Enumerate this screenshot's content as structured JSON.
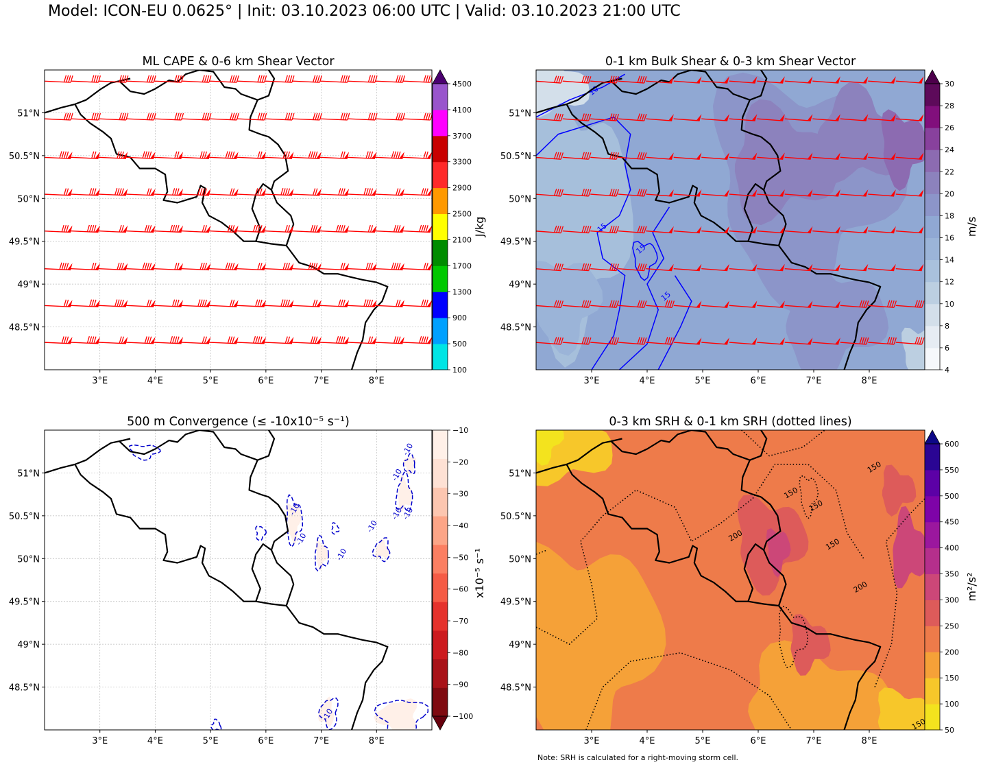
{
  "figure": {
    "title": "Model: ICON-EU 0.0625° | Init: 03.10.2023 06:00 UTC | Valid: 03.10.2023 21:00 UTC",
    "footnote": "Note: SRH is calculated for a right-moving storm cell."
  },
  "chart_data": [
    {
      "type": "heatmap",
      "title": "ML CAPE & 0-6 km Shear Vector",
      "xlabel": "",
      "ylabel": "",
      "xlim": [
        2.0,
        9.0
      ],
      "ylim": [
        48.0,
        51.5
      ],
      "xticks": [
        "3°E",
        "4°E",
        "5°E",
        "6°E",
        "7°E",
        "8°E"
      ],
      "yticks": [
        "48.5°N",
        "49°N",
        "49.5°N",
        "50°N",
        "50.5°N",
        "51°N"
      ],
      "grid": true,
      "colorbar": {
        "label": "J/kg",
        "levels": [
          100,
          500,
          900,
          1300,
          1700,
          2100,
          2500,
          2900,
          3300,
          3700,
          4100,
          4500
        ],
        "tick_labels": [
          "100",
          "500",
          "900",
          "1300",
          "1700",
          "2100",
          "2500",
          "2900",
          "3300",
          "3700",
          "4100",
          "4500"
        ],
        "colors": [
          "#00e5e5",
          "#00a0ff",
          "#0000ff",
          "#00c800",
          "#008c00",
          "#ffff00",
          "#ff9900",
          "#ff2a2a",
          "#c80000",
          "#ff00ff",
          "#9955cc"
        ],
        "extend_color": "#4b0070",
        "extend": "max"
      },
      "field": "none (no CAPE ≥ 100 J/kg in domain)",
      "barbs": {
        "color": "#ff0000",
        "lats": [
          51.37,
          50.93,
          50.48,
          50.05,
          49.62,
          49.18,
          48.75,
          48.32
        ],
        "lons": [
          2.25,
          2.75,
          3.25,
          3.75,
          4.25,
          4.75,
          5.25,
          5.75,
          6.25,
          6.75,
          7.25,
          7.75,
          8.25,
          8.75
        ],
        "description": "0-6 km shear ~40-55 kt from WNW"
      }
    },
    {
      "type": "heatmap",
      "title": "0-1 km Bulk Shear & 0-3 km Shear Vector",
      "xlabel": "",
      "ylabel": "",
      "xlim": [
        2.0,
        9.0
      ],
      "ylim": [
        48.0,
        51.5
      ],
      "xticks": [
        "3°E",
        "4°E",
        "5°E",
        "6°E",
        "7°E",
        "8°E"
      ],
      "yticks": [
        "48.5°N",
        "49°N",
        "49.5°N",
        "50°N",
        "50.5°N",
        "51°N"
      ],
      "grid": false,
      "colorbar": {
        "label": "m/s",
        "levels": [
          4,
          6,
          8,
          10,
          12,
          14,
          16,
          18,
          20,
          22,
          24,
          26,
          28,
          30
        ],
        "tick_labels": [
          "4",
          "6",
          "8",
          "10",
          "12",
          "14",
          "16",
          "18",
          "20",
          "22",
          "24",
          "26",
          "28",
          "30"
        ],
        "colors": [
          "#f6f8fb",
          "#e6ecf3",
          "#d3dfea",
          "#bccfe1",
          "#a9c1dc",
          "#9bb4d8",
          "#90a8d3",
          "#8c95c9",
          "#8c82bd",
          "#8c6bb1",
          "#88419d",
          "#810f7c",
          "#5d0a5a"
        ],
        "extend_color": "#4d004b",
        "extend": "max"
      },
      "contours": {
        "color": "#0000ff",
        "levels": [
          10,
          15
        ],
        "labels": [
          "10",
          "15",
          "15",
          "15"
        ]
      },
      "field_summary": "mostly 14-20 m/s, locally 20-24 m/s east of 5°E, 10-14 m/s in far west",
      "barbs": {
        "color": "#ff0000",
        "description": "0-3 km shear ~30-50 kt from WNW"
      }
    },
    {
      "type": "heatmap",
      "title": "500 m Convergence (≤ -10x10⁻⁵ s⁻¹)",
      "xlabel": "",
      "ylabel": "",
      "xlim": [
        2.0,
        9.0
      ],
      "ylim": [
        48.0,
        51.5
      ],
      "xticks": [
        "3°E",
        "4°E",
        "5°E",
        "6°E",
        "7°E",
        "8°E"
      ],
      "yticks": [
        "48.5°N",
        "49°N",
        "49.5°N",
        "50°N",
        "50.5°N",
        "51°N"
      ],
      "grid": true,
      "colorbar": {
        "label": "x10⁻⁵ s⁻¹",
        "levels": [
          -100,
          -90,
          -80,
          -70,
          -60,
          -50,
          -40,
          -30,
          -20,
          -10
        ],
        "tick_labels": [
          "−100",
          "−90",
          "−80",
          "−70",
          "−60",
          "−50",
          "−40",
          "−30",
          "−20",
          "−10"
        ],
        "colors": [
          "#7f0a10",
          "#a81218",
          "#cc1a1e",
          "#e5322c",
          "#f55b45",
          "#fb7f62",
          "#fca587",
          "#fcc6b0",
          "#fee1d4"
        ],
        "top_color": "#fff0e8",
        "extend_color": "#67000d",
        "extend": "min"
      },
      "contours": {
        "color": "#0000cc",
        "style": "dashed",
        "levels": [
          -10
        ],
        "labels": [
          "-10",
          "-10",
          "-10",
          "-10",
          "-10",
          "-10",
          "-10",
          "-10",
          "-10"
        ]
      },
      "field_summary": "isolated weak convergence cells ≈ -10 to -20 x10⁻⁵ s⁻¹ over eastern domain"
    },
    {
      "type": "heatmap",
      "title": "0-3 km SRH & 0-1 km SRH (dotted lines)",
      "xlabel": "",
      "ylabel": "",
      "xlim": [
        2.0,
        9.0
      ],
      "ylim": [
        48.0,
        51.5
      ],
      "xticks": [
        "3°E",
        "4°E",
        "5°E",
        "6°E",
        "7°E",
        "8°E"
      ],
      "yticks": [
        "48.5°N",
        "49°N",
        "49.5°N",
        "50°N",
        "50.5°N",
        "51°N"
      ],
      "grid": false,
      "colorbar": {
        "label": "m²/s²",
        "levels": [
          50,
          100,
          150,
          200,
          250,
          300,
          350,
          400,
          450,
          500,
          550,
          600
        ],
        "tick_labels": [
          "50",
          "100",
          "150",
          "200",
          "250",
          "300",
          "350",
          "400",
          "450",
          "500",
          "550",
          "600"
        ],
        "colors": [
          "#f3e31e",
          "#f7c72a",
          "#f5a138",
          "#ee7b4a",
          "#dd5b5a",
          "#cc4778",
          "#b52f8c",
          "#9b179e",
          "#7e03a8",
          "#5c01a6",
          "#2a0593"
        ],
        "extend_color": "#0d0887",
        "extend": "max"
      },
      "contours": {
        "color": "#000000",
        "style": "dotted",
        "levels": [
          150,
          200
        ],
        "labels": [
          "150",
          "150",
          "150",
          "150",
          "200",
          "200",
          "150"
        ]
      },
      "field_summary": "0-3 km SRH mostly 150-250 m²/s², locally 250-350 m²/s² near 6-7°E; 50-150 in NW corner and SE"
    }
  ]
}
